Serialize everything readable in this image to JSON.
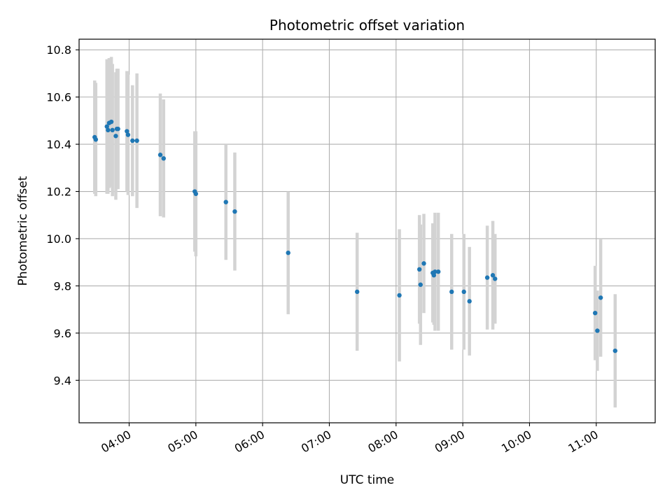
{
  "chart_data": {
    "type": "scatter",
    "title": "Photometric offset variation",
    "xlabel": "UTC time",
    "ylabel": "Photometric offset",
    "grid": true,
    "legend": "none",
    "x_ticks": [
      "04:00",
      "05:00",
      "06:00",
      "07:00",
      "08:00",
      "09:00",
      "10:00",
      "11:00"
    ],
    "y_ticks": [
      "9.4",
      "9.6",
      "9.8",
      "10.0",
      "10.2",
      "10.4",
      "10.6",
      "10.8"
    ],
    "xlim": [
      "03:15",
      "11:53"
    ],
    "ylim": [
      9.22,
      10.845
    ],
    "colors": {
      "marker": "#1f77b4",
      "errorbar": "#d3d3d3",
      "grid": "#b0b0b0"
    },
    "series": [
      {
        "x": [
          "03:29",
          "03:30",
          "03:40",
          "03:41",
          "03:42",
          "03:44",
          "03:45",
          "03:48",
          "03:49",
          "03:50",
          "03:58",
          "03:59",
          "04:03",
          "04:07",
          "04:28",
          "04:31",
          "04:59",
          "05:00",
          "05:27",
          "05:35",
          "06:23",
          "07:25",
          "08:03",
          "08:21",
          "08:22",
          "08:25",
          "08:33",
          "08:34",
          "08:35",
          "08:38",
          "08:50",
          "09:01",
          "09:06",
          "09:22",
          "09:27",
          "09:29",
          "10:59",
          "11:01",
          "11:04",
          "11:17"
        ],
        "y": [
          10.43,
          10.42,
          10.475,
          10.46,
          10.49,
          10.495,
          10.46,
          10.435,
          10.465,
          10.465,
          10.455,
          10.44,
          10.415,
          10.415,
          10.355,
          10.34,
          10.2,
          10.19,
          10.155,
          10.115,
          9.94,
          9.775,
          9.76,
          9.87,
          9.805,
          9.895,
          9.855,
          9.845,
          9.86,
          9.86,
          9.775,
          9.775,
          9.735,
          9.835,
          9.845,
          9.83,
          9.685,
          9.61,
          9.75,
          9.525
        ],
        "yerr": [
          0.24,
          0.24,
          0.285,
          0.27,
          0.275,
          0.275,
          0.28,
          0.27,
          0.255,
          0.255,
          0.255,
          0.255,
          0.235,
          0.285,
          0.26,
          0.25,
          0.255,
          0.265,
          0.245,
          0.25,
          0.26,
          0.25,
          0.28,
          0.23,
          0.255,
          0.21,
          0.21,
          0.21,
          0.25,
          0.25,
          0.245,
          0.245,
          0.23,
          0.22,
          0.23,
          0.19,
          0.2,
          0.17,
          0.25,
          0.24
        ]
      }
    ]
  }
}
